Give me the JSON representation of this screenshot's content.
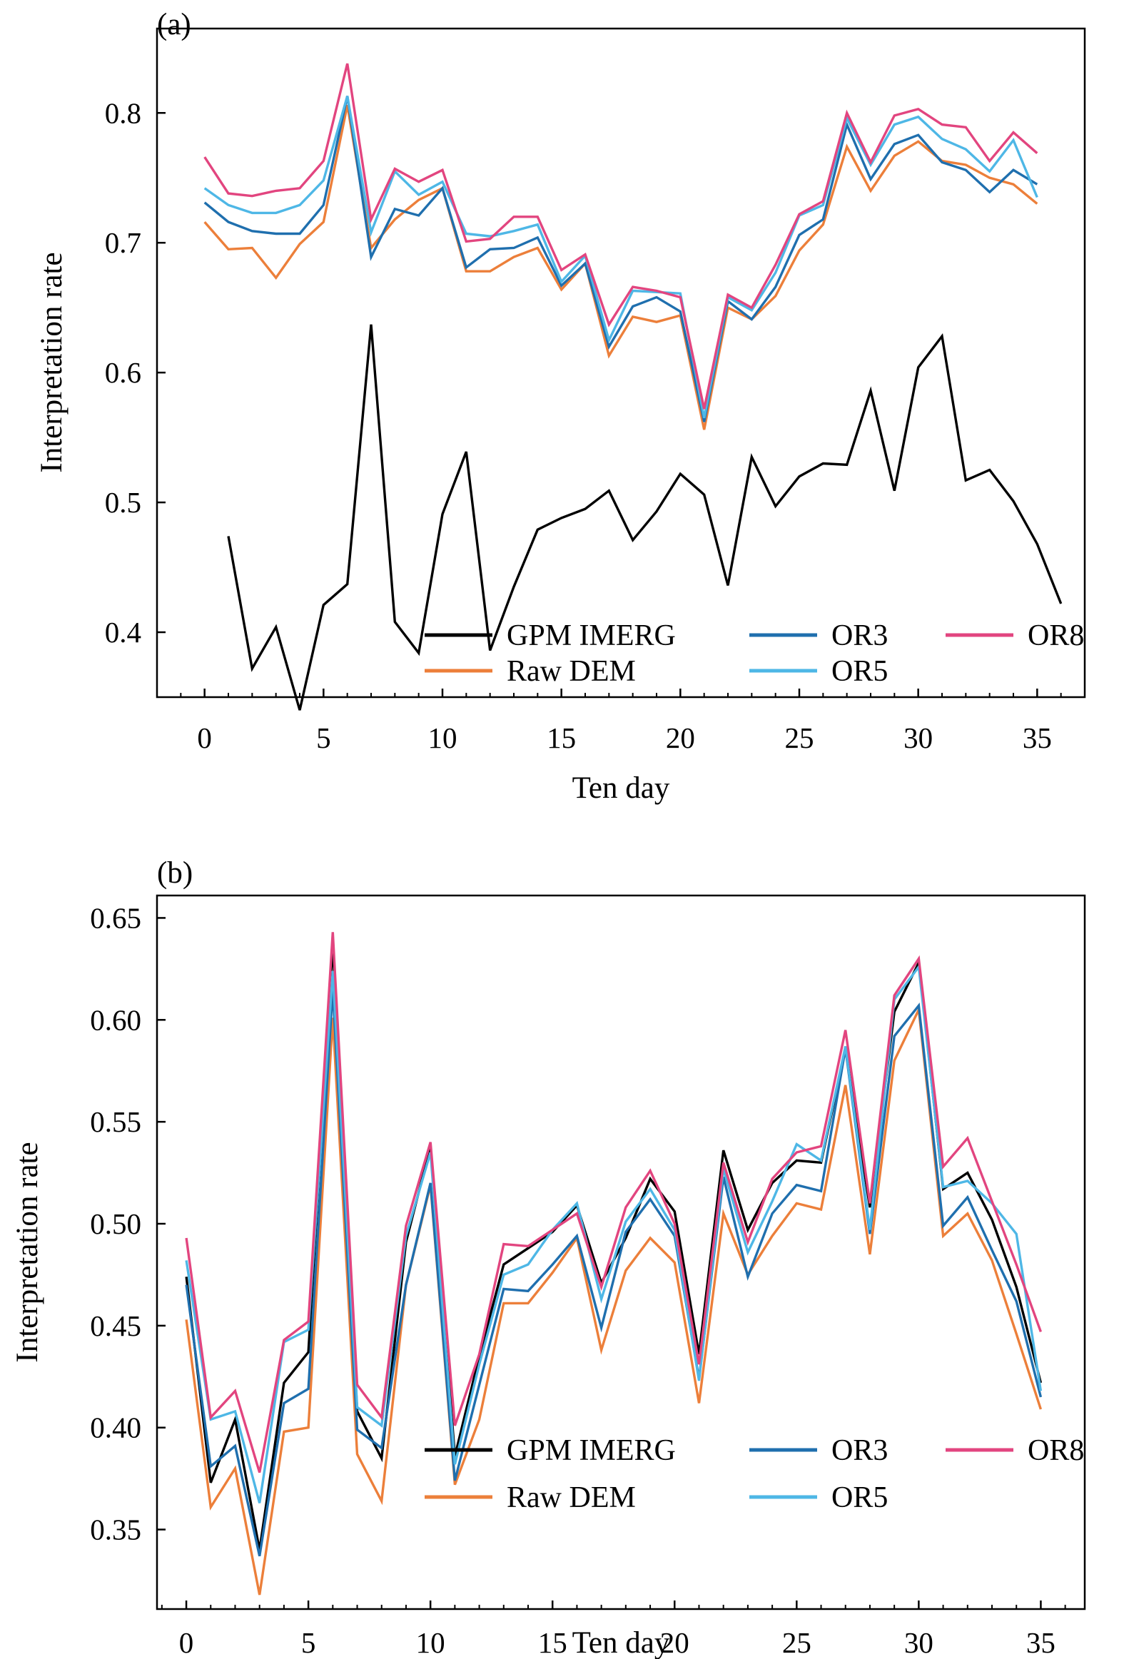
{
  "chart_data": [
    {
      "type": "line",
      "panel_label": "(a)",
      "xlabel": "Ten day",
      "ylabel": "Interpretation rate",
      "xlim": [
        -2,
        37
      ],
      "ylim": [
        0.35,
        0.865
      ],
      "xticks": [
        0,
        5,
        10,
        15,
        20,
        25,
        30,
        35
      ],
      "yticks": [
        0.4,
        0.5,
        0.6,
        0.7,
        0.8
      ],
      "ytick_labels": [
        "0.4",
        "0.5",
        "0.6",
        "0.7",
        "0.8"
      ],
      "legend_position": "bottom-right",
      "x": [
        0,
        1,
        2,
        3,
        4,
        5,
        6,
        7,
        8,
        9,
        10,
        11,
        12,
        13,
        14,
        15,
        16,
        17,
        18,
        19,
        20,
        21,
        22,
        23,
        24,
        25,
        26,
        27,
        28,
        29,
        30,
        31,
        32,
        33,
        34,
        35,
        36
      ],
      "series": [
        {
          "name": "GPM IMERG",
          "color": "#000000",
          "x": [
            1,
            2,
            3,
            4,
            5,
            6,
            7,
            8,
            9,
            10,
            11,
            12,
            13,
            14,
            15,
            16,
            17,
            18,
            19,
            20,
            21,
            22,
            23,
            24,
            25,
            26,
            27,
            28,
            29,
            30,
            31,
            32,
            33,
            34,
            35,
            36
          ],
          "values": [
            0.474,
            0.372,
            0.404,
            0.34,
            0.421,
            0.437,
            0.637,
            0.408,
            0.384,
            0.491,
            0.539,
            0.386,
            0.435,
            0.479,
            0.488,
            0.495,
            0.509,
            0.471,
            0.493,
            0.522,
            0.506,
            0.436,
            0.535,
            0.497,
            0.52,
            0.53,
            0.529,
            0.586,
            0.509,
            0.604,
            0.628,
            0.517,
            0.525,
            0.501,
            0.468,
            0.422
          ]
        },
        {
          "name": "Raw DEM",
          "color": "#ec7f3a",
          "x": [
            0,
            1,
            2,
            3,
            4,
            5,
            6,
            7,
            8,
            9,
            10,
            11,
            12,
            13,
            14,
            15,
            16,
            17,
            18,
            19,
            20,
            21,
            22,
            23,
            24,
            25,
            26,
            27,
            28,
            29,
            30,
            31,
            32,
            33,
            34,
            35
          ],
          "values": [
            0.716,
            0.695,
            0.696,
            0.673,
            0.699,
            0.716,
            0.806,
            0.696,
            0.718,
            0.733,
            0.742,
            0.678,
            0.678,
            0.689,
            0.696,
            0.664,
            0.684,
            0.613,
            0.643,
            0.639,
            0.644,
            0.556,
            0.65,
            0.641,
            0.659,
            0.694,
            0.714,
            0.774,
            0.74,
            0.767,
            0.778,
            0.763,
            0.76,
            0.75,
            0.745,
            0.73
          ]
        },
        {
          "name": "OR3",
          "color": "#1f6fae",
          "x": [
            0,
            1,
            2,
            3,
            4,
            5,
            6,
            7,
            8,
            9,
            10,
            11,
            12,
            13,
            14,
            15,
            16,
            17,
            18,
            19,
            20,
            21,
            22,
            23,
            24,
            25,
            26,
            27,
            28,
            29,
            30,
            31,
            32,
            33,
            34,
            35
          ],
          "values": [
            0.731,
            0.716,
            0.709,
            0.707,
            0.707,
            0.729,
            0.813,
            0.689,
            0.726,
            0.721,
            0.742,
            0.681,
            0.695,
            0.696,
            0.704,
            0.667,
            0.684,
            0.62,
            0.651,
            0.658,
            0.647,
            0.562,
            0.655,
            0.641,
            0.666,
            0.706,
            0.718,
            0.791,
            0.749,
            0.776,
            0.783,
            0.762,
            0.756,
            0.739,
            0.756,
            0.745
          ]
        },
        {
          "name": "OR5",
          "color": "#4eb7e6",
          "x": [
            0,
            1,
            2,
            3,
            4,
            5,
            6,
            7,
            8,
            9,
            10,
            11,
            12,
            13,
            14,
            15,
            16,
            17,
            18,
            19,
            20,
            21,
            22,
            23,
            24,
            25,
            26,
            27,
            28,
            29,
            30,
            31,
            32,
            33,
            34,
            35
          ],
          "values": [
            0.742,
            0.729,
            0.723,
            0.723,
            0.729,
            0.748,
            0.813,
            0.708,
            0.755,
            0.737,
            0.747,
            0.707,
            0.705,
            0.709,
            0.714,
            0.67,
            0.69,
            0.625,
            0.663,
            0.662,
            0.661,
            0.565,
            0.658,
            0.648,
            0.677,
            0.721,
            0.729,
            0.796,
            0.76,
            0.791,
            0.797,
            0.78,
            0.772,
            0.755,
            0.779,
            0.735
          ]
        },
        {
          "name": "OR8",
          "color": "#e2457f",
          "x": [
            0,
            1,
            2,
            3,
            4,
            5,
            6,
            7,
            8,
            9,
            10,
            11,
            12,
            13,
            14,
            15,
            16,
            17,
            18,
            19,
            20,
            21,
            22,
            23,
            24,
            25,
            26,
            27,
            28,
            29,
            30,
            31,
            32,
            33,
            34,
            35
          ],
          "values": [
            0.766,
            0.738,
            0.736,
            0.74,
            0.742,
            0.763,
            0.838,
            0.718,
            0.757,
            0.747,
            0.756,
            0.701,
            0.703,
            0.72,
            0.72,
            0.679,
            0.691,
            0.637,
            0.666,
            0.663,
            0.658,
            0.572,
            0.66,
            0.65,
            0.683,
            0.722,
            0.732,
            0.8,
            0.762,
            0.798,
            0.803,
            0.791,
            0.789,
            0.763,
            0.785,
            0.769
          ]
        }
      ]
    },
    {
      "type": "line",
      "panel_label": "(b)",
      "xlabel": "Ten day",
      "ylabel": "Interpretation rate",
      "xlim": [
        -1.2,
        36.8
      ],
      "ylim": [
        0.311,
        0.661
      ],
      "xticks": [
        0,
        5,
        10,
        15,
        20,
        25,
        30,
        35
      ],
      "yticks": [
        0.35,
        0.4,
        0.45,
        0.5,
        0.55,
        0.6,
        0.65
      ],
      "ytick_labels": [
        "0.35",
        "0.40",
        "0.45",
        "0.50",
        "0.55",
        "0.60",
        "0.65"
      ],
      "legend_position": "bottom-right",
      "x": [
        0,
        1,
        2,
        3,
        4,
        5,
        6,
        7,
        8,
        9,
        10,
        11,
        12,
        13,
        14,
        15,
        16,
        17,
        18,
        19,
        20,
        21,
        22,
        23,
        24,
        25,
        26,
        27,
        28,
        29,
        30,
        31,
        32,
        33,
        34,
        35
      ],
      "series": [
        {
          "name": "GPM IMERG",
          "color": "#000000",
          "values": [
            0.474,
            0.373,
            0.404,
            0.34,
            0.422,
            0.437,
            0.637,
            0.408,
            0.385,
            0.491,
            0.538,
            0.386,
            0.435,
            0.48,
            0.488,
            0.496,
            0.509,
            0.471,
            0.493,
            0.522,
            0.506,
            0.436,
            0.536,
            0.497,
            0.52,
            0.531,
            0.53,
            0.586,
            0.508,
            0.604,
            0.628,
            0.517,
            0.525,
            0.502,
            0.469,
            0.422
          ]
        },
        {
          "name": "Raw DEM",
          "color": "#ec7f3a",
          "values": [
            0.453,
            0.361,
            0.38,
            0.318,
            0.398,
            0.4,
            0.601,
            0.387,
            0.364,
            0.47,
            0.519,
            0.372,
            0.404,
            0.461,
            0.461,
            0.476,
            0.493,
            0.438,
            0.477,
            0.493,
            0.481,
            0.412,
            0.505,
            0.475,
            0.494,
            0.51,
            0.507,
            0.568,
            0.485,
            0.58,
            0.605,
            0.494,
            0.505,
            0.482,
            0.446,
            0.409
          ]
        },
        {
          "name": "OR3",
          "color": "#1f6fae",
          "values": [
            0.47,
            0.381,
            0.391,
            0.337,
            0.412,
            0.419,
            0.615,
            0.399,
            0.39,
            0.47,
            0.52,
            0.374,
            0.421,
            0.468,
            0.467,
            0.48,
            0.494,
            0.449,
            0.496,
            0.512,
            0.494,
            0.424,
            0.523,
            0.474,
            0.505,
            0.519,
            0.516,
            0.586,
            0.495,
            0.592,
            0.607,
            0.499,
            0.513,
            0.487,
            0.462,
            0.415
          ]
        },
        {
          "name": "OR5",
          "color": "#4eb7e6",
          "values": [
            0.482,
            0.404,
            0.408,
            0.363,
            0.442,
            0.448,
            0.624,
            0.41,
            0.401,
            0.494,
            0.535,
            0.382,
            0.431,
            0.475,
            0.48,
            0.497,
            0.51,
            0.463,
            0.501,
            0.517,
            0.497,
            0.423,
            0.527,
            0.486,
            0.511,
            0.539,
            0.531,
            0.587,
            0.497,
            0.61,
            0.626,
            0.518,
            0.521,
            0.51,
            0.495,
            0.418
          ]
        },
        {
          "name": "OR8",
          "color": "#e2457f",
          "values": [
            0.493,
            0.405,
            0.418,
            0.378,
            0.443,
            0.452,
            0.643,
            0.421,
            0.405,
            0.499,
            0.54,
            0.401,
            0.436,
            0.49,
            0.489,
            0.497,
            0.505,
            0.469,
            0.508,
            0.526,
            0.5,
            0.431,
            0.53,
            0.491,
            0.522,
            0.535,
            0.538,
            0.595,
            0.51,
            0.612,
            0.63,
            0.528,
            0.542,
            0.511,
            0.48,
            0.447
          ]
        }
      ]
    }
  ]
}
